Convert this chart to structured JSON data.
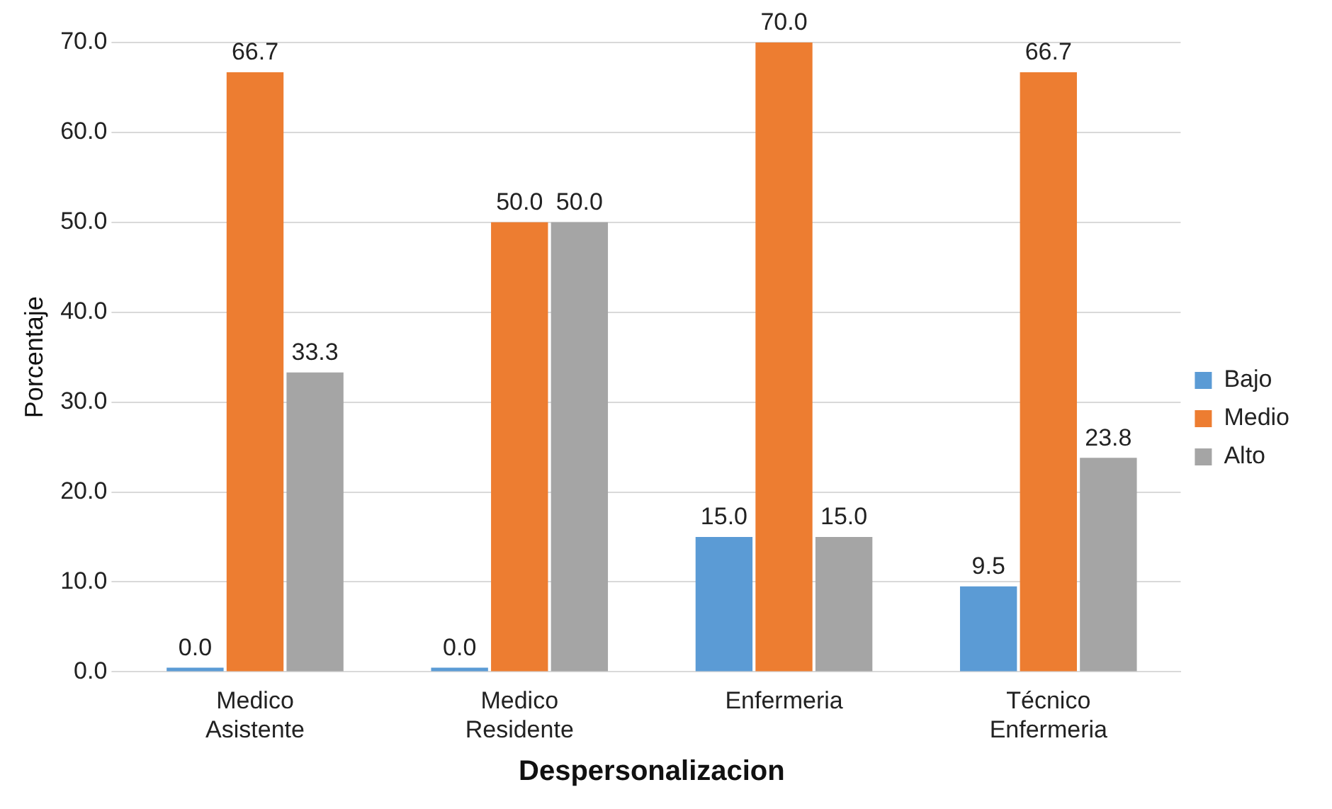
{
  "chart_data": {
    "type": "bar",
    "xlabel": "Despersonalizacion",
    "ylabel": "Porcentaje",
    "categories": [
      "Medico Asistente",
      "Medico Residente",
      "Enfermeria",
      "Técnico Enfermeria"
    ],
    "series": [
      {
        "name": "Bajo",
        "color": "#5b9bd5",
        "values": [
          0,
          0,
          15,
          9.5
        ],
        "value_labels": [
          "0.0",
          "0.0",
          "15.0",
          "9.5"
        ]
      },
      {
        "name": "Medio",
        "color": "#ed7d31",
        "values": [
          66.7,
          50,
          70,
          66.7
        ],
        "value_labels": [
          "66.7",
          "50.0",
          "70.0",
          "66.7"
        ]
      },
      {
        "name": "Alto",
        "color": "#a5a5a5",
        "values": [
          33.3,
          50,
          15,
          23.8
        ],
        "value_labels": [
          "33.3",
          "50.0",
          "15.0",
          "23.8"
        ]
      }
    ],
    "ylim": [
      0,
      70
    ],
    "yticks": [
      {
        "value": 0,
        "label": "0.0"
      },
      {
        "value": 10,
        "label": "10.0"
      },
      {
        "value": 20,
        "label": "20.0"
      },
      {
        "value": 30,
        "label": "30.0"
      },
      {
        "value": 40,
        "label": "40.0"
      },
      {
        "value": 50,
        "label": "50.0"
      },
      {
        "value": 60,
        "label": "60.0"
      },
      {
        "value": 70,
        "label": "70.0"
      }
    ],
    "grid": "y",
    "legend": "right"
  }
}
